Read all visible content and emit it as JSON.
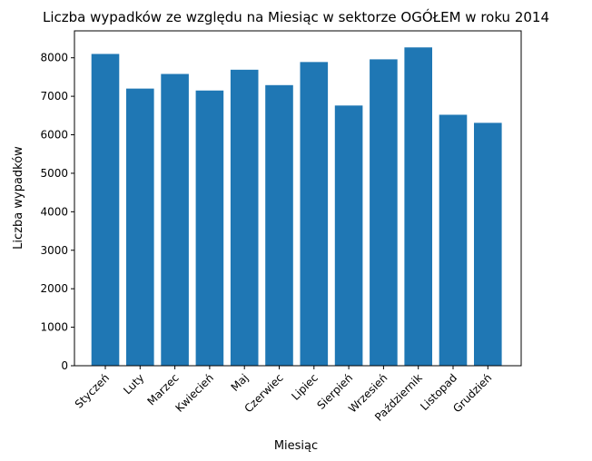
{
  "chart_data": {
    "type": "bar",
    "title": "Liczba wypadków ze względu na Miesiąc w sektorze OGÓŁEM   w roku 2014",
    "xlabel": "Miesiąc",
    "ylabel": "Liczba wypadków",
    "categories": [
      "Styczeń",
      "Luty",
      "Marzec",
      "Kwiecień",
      "Maj",
      "Czerwiec",
      "Lipiec",
      "Sierpień",
      "Wrzesień",
      "Październik",
      "Listopad",
      "Grudzień"
    ],
    "values": [
      8100,
      7200,
      7580,
      7150,
      7690,
      7290,
      7890,
      6760,
      7960,
      8270,
      6520,
      6310
    ],
    "ylim": [
      0,
      8700
    ],
    "yticks": [
      0,
      1000,
      2000,
      3000,
      4000,
      5000,
      6000,
      7000,
      8000
    ],
    "grid": false,
    "bar_color": "#1f77b4"
  }
}
